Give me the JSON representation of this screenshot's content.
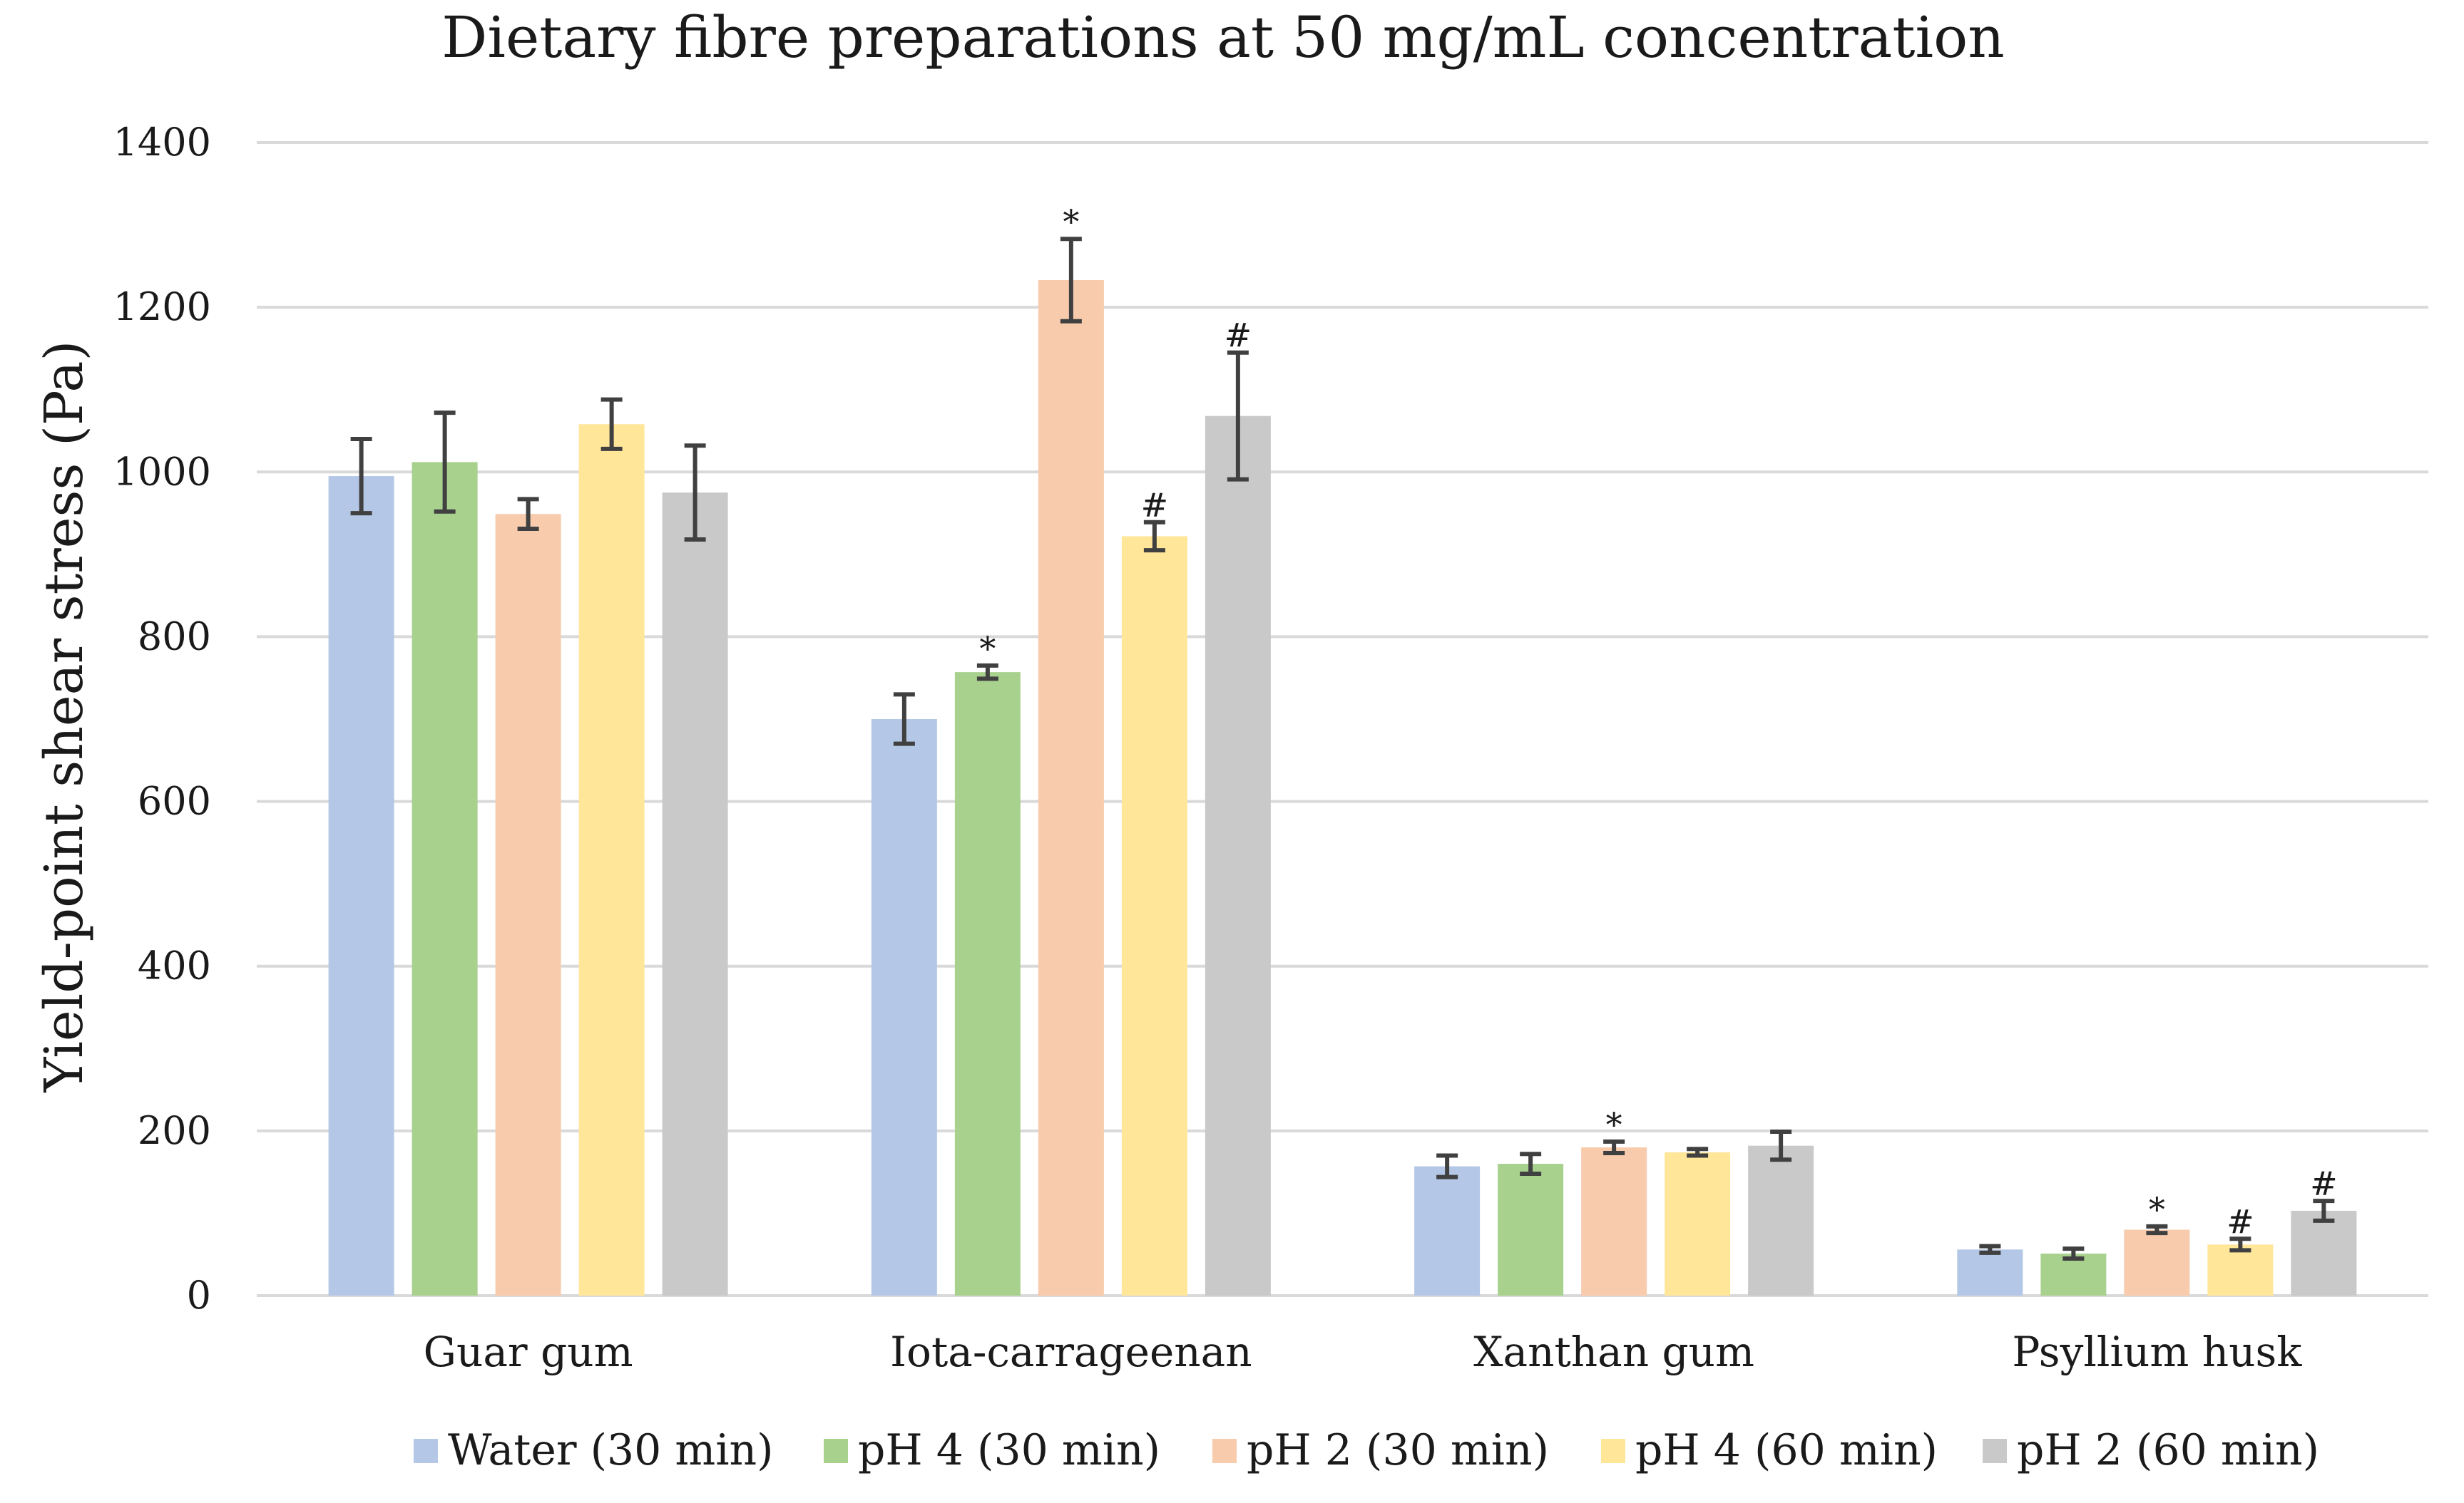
{
  "chart_data": {
    "type": "bar",
    "title": "Dietary fibre preparations at 50 mg/mL concentration",
    "xlabel": "",
    "ylabel": "Yield-point shear stress (Pa)",
    "ylim": [
      0,
      1400
    ],
    "yticks": [
      0,
      200,
      400,
      600,
      800,
      1000,
      1200,
      1400
    ],
    "grid": true,
    "legend_position": "bottom",
    "categories": [
      "Guar gum",
      "Iota-carrageenan",
      "Xanthan gum",
      "Psyllium husk"
    ],
    "series": [
      {
        "name": "Water (30 min)",
        "color": "#b4c7e7",
        "values": [
          995,
          700,
          157,
          56
        ],
        "errors": [
          45,
          30,
          13,
          4
        ],
        "annotations": [
          "",
          "",
          "",
          ""
        ]
      },
      {
        "name": "pH 4 (30 min)",
        "color": "#a9d18e",
        "values": [
          1012,
          757,
          160,
          51
        ],
        "errors": [
          60,
          8,
          12,
          6
        ],
        "annotations": [
          "",
          "*",
          "",
          ""
        ]
      },
      {
        "name": "pH 2 (30 min)",
        "color": "#f8cbad",
        "values": [
          949,
          1233,
          180,
          80
        ],
        "errors": [
          18,
          50,
          7,
          4
        ],
        "annotations": [
          "",
          "*",
          "*",
          "*"
        ]
      },
      {
        "name": "pH 4 (60 min)",
        "color": "#ffe699",
        "values": [
          1058,
          922,
          174,
          62
        ],
        "errors": [
          30,
          17,
          4,
          7
        ],
        "annotations": [
          "",
          "#",
          "",
          "#"
        ]
      },
      {
        "name": "pH 2 (60 min)",
        "color": "#c9c9c9",
        "values": [
          975,
          1068,
          182,
          103
        ],
        "errors": [
          57,
          77,
          17,
          12
        ],
        "annotations": [
          "",
          "#",
          "",
          "#"
        ]
      }
    ]
  }
}
